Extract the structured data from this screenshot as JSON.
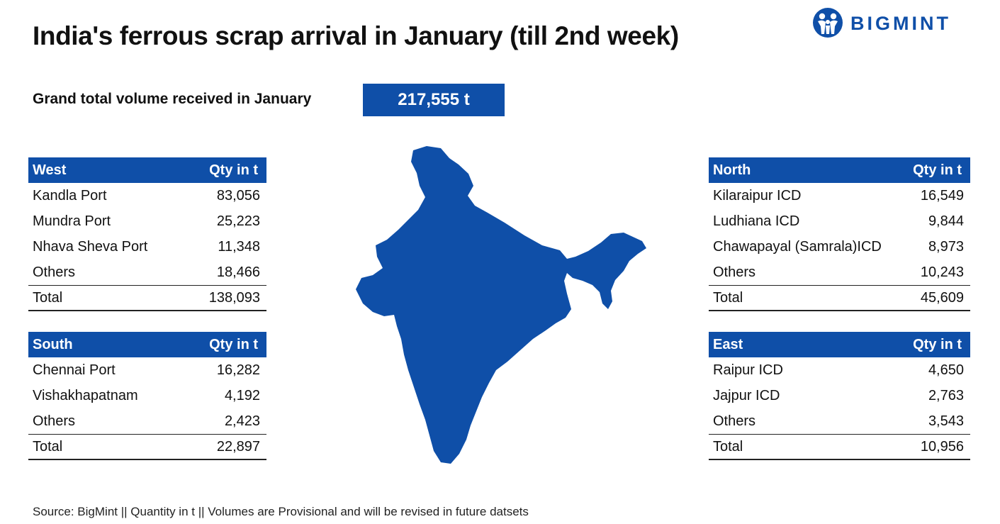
{
  "title": "India's ferrous scrap arrival in January (till 2nd week)",
  "logo": {
    "text": "BIGMINT",
    "color": "#0f4fa8"
  },
  "grand_total": {
    "label": "Grand total volume received in January",
    "value": "217,555 t"
  },
  "chart_data": {
    "type": "table",
    "accent_color": "#0f4fa8",
    "tables": [
      {
        "region": "West",
        "qty_header": "Qty in t",
        "rows": [
          {
            "name": "Kandla Port",
            "qty": "83,056"
          },
          {
            "name": "Mundra Port",
            "qty": "25,223"
          },
          {
            "name": "Nhava Sheva Port",
            "qty": "11,348"
          },
          {
            "name": "Others",
            "qty": "18,466"
          }
        ],
        "total_label": "Total",
        "total": "138,093"
      },
      {
        "region": "South",
        "qty_header": "Qty in t",
        "rows": [
          {
            "name": "Chennai Port",
            "qty": "16,282"
          },
          {
            "name": "Vishakhapatnam",
            "qty": "4,192"
          },
          {
            "name": "Others",
            "qty": "2,423"
          }
        ],
        "total_label": "Total",
        "total": "22,897"
      },
      {
        "region": "North",
        "qty_header": "Qty in t",
        "rows": [
          {
            "name": "Kilaraipur ICD",
            "qty": "16,549"
          },
          {
            "name": "Ludhiana ICD",
            "qty": "9,844"
          },
          {
            "name": "Chawapayal (Samrala)ICD",
            "qty": "8,973"
          },
          {
            "name": "Others",
            "qty": "10,243"
          }
        ],
        "total_label": "Total",
        "total": "45,609"
      },
      {
        "region": "East",
        "qty_header": "Qty in t",
        "rows": [
          {
            "name": "Raipur ICD",
            "qty": "4,650"
          },
          {
            "name": "Jajpur ICD",
            "qty": "2,763"
          },
          {
            "name": "Others",
            "qty": "3,543"
          }
        ],
        "total_label": "Total",
        "total": "10,956"
      }
    ]
  },
  "source": "Source: BigMint ||  Quantity in t  ||  Volumes are Provisional and will be revised in future datsets"
}
